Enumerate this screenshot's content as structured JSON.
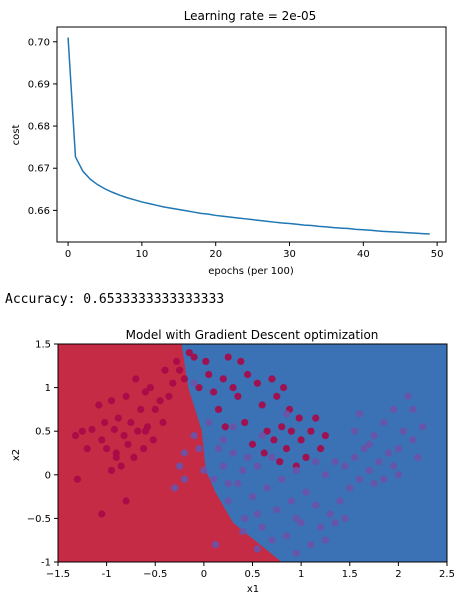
{
  "accuracy_text": "Accuracy: 0.6533333333333333",
  "chart_data": [
    {
      "type": "line",
      "title": "Learning rate = 2e-05",
      "xlabel": "epochs (per 100)",
      "ylabel": "cost",
      "xlim": [
        -1.5,
        51.2
      ],
      "ylim": [
        0.6525,
        0.7035
      ],
      "xticks": [
        0,
        10,
        20,
        30,
        40,
        50
      ],
      "yticks": [
        0.66,
        0.67,
        0.68,
        0.69,
        0.7
      ],
      "ytick_labels": [
        "0.66",
        "0.67",
        "0.68",
        "0.69",
        "0.70"
      ],
      "grid": false,
      "series": [
        {
          "color": "#1f77b4",
          "x": [
            0,
            1,
            2,
            3,
            4,
            5,
            6,
            7,
            8,
            9,
            10,
            11,
            12,
            13,
            14,
            15,
            16,
            17,
            18,
            19,
            20,
            21,
            22,
            23,
            24,
            25,
            26,
            27,
            28,
            29,
            30,
            31,
            32,
            33,
            34,
            35,
            36,
            37,
            38,
            39,
            40,
            41,
            42,
            43,
            44,
            45,
            46,
            47,
            48,
            49
          ],
          "y": [
            0.701,
            0.6727,
            0.6693,
            0.6674,
            0.6661,
            0.6651,
            0.6643,
            0.6636,
            0.663,
            0.6625,
            0.662,
            0.6616,
            0.6612,
            0.6608,
            0.6605,
            0.6602,
            0.6599,
            0.6596,
            0.6593,
            0.6591,
            0.6588,
            0.6586,
            0.6584,
            0.6582,
            0.658,
            0.6578,
            0.6576,
            0.6574,
            0.6572,
            0.657,
            0.6569,
            0.6567,
            0.6565,
            0.6564,
            0.6562,
            0.6561,
            0.6559,
            0.6558,
            0.6557,
            0.6555,
            0.6554,
            0.6553,
            0.6551,
            0.655,
            0.6549,
            0.6548,
            0.6547,
            0.6546,
            0.6545,
            0.6544
          ]
        }
      ]
    },
    {
      "type": "scatter",
      "title": "Model with Gradient Descent optimization",
      "xlabel": "x1",
      "ylabel": "x2",
      "xlim": [
        -1.5,
        2.5
      ],
      "ylim": [
        -1.0,
        1.5
      ],
      "xticks": [
        -1.5,
        -1.0,
        -0.5,
        0.0,
        0.5,
        1.0,
        1.5,
        2.0,
        2.5
      ],
      "yticks": [
        -1.0,
        -0.5,
        0.0,
        0.5,
        1.0,
        1.5
      ],
      "grid": false,
      "regions": {
        "class0_color": "#c62b45",
        "class1_color": "#3b72b5",
        "boundary": [
          [
            0.8,
            -1.0
          ],
          [
            0.3,
            -0.55
          ],
          [
            0.12,
            -0.2
          ],
          [
            0.02,
            0.05
          ],
          [
            -0.02,
            0.5
          ],
          [
            -0.16,
            1.0
          ],
          [
            -0.23,
            1.5
          ]
        ]
      },
      "series": [
        {
          "class": 0,
          "color": "#a80a49",
          "points": [
            [
              -1.32,
              0.45
            ],
            [
              -1.25,
              0.5
            ],
            [
              -1.3,
              -0.05
            ],
            [
              -1.15,
              0.52
            ],
            [
              -1.08,
              0.8
            ],
            [
              -1.05,
              0.4
            ],
            [
              -1.02,
              0.6
            ],
            [
              -1.0,
              0.3
            ],
            [
              -0.95,
              0.85
            ],
            [
              -0.92,
              0.52
            ],
            [
              -0.9,
              0.25
            ],
            [
              -0.88,
              0.65
            ],
            [
              -0.85,
              0.1
            ],
            [
              -0.82,
              0.45
            ],
            [
              -0.8,
              0.9
            ],
            [
              -0.78,
              0.35
            ],
            [
              -0.75,
              0.6
            ],
            [
              -0.72,
              0.2
            ],
            [
              -0.7,
              1.1
            ],
            [
              -0.68,
              0.5
            ],
            [
              -0.65,
              0.75
            ],
            [
              -0.62,
              0.3
            ],
            [
              -0.6,
              0.95
            ],
            [
              -0.58,
              0.55
            ],
            [
              -0.55,
              1.0
            ],
            [
              -0.52,
              0.4
            ],
            [
              -0.5,
              0.75
            ],
            [
              -0.45,
              0.85
            ],
            [
              -0.42,
              0.6
            ],
            [
              -0.4,
              1.2
            ],
            [
              -0.36,
              0.9
            ],
            [
              -0.32,
              1.05
            ],
            [
              -0.28,
              1.3
            ],
            [
              -0.25,
              1.2
            ],
            [
              -0.2,
              1.1
            ],
            [
              -0.15,
              1.4
            ],
            [
              -0.1,
              1.35
            ],
            [
              -0.05,
              1.0
            ],
            [
              0.02,
              1.3
            ],
            [
              0.05,
              1.15
            ],
            [
              0.1,
              0.95
            ],
            [
              0.15,
              0.75
            ],
            [
              0.2,
              1.1
            ],
            [
              0.22,
              0.55
            ],
            [
              0.25,
              1.35
            ],
            [
              0.3,
              1.0
            ],
            [
              0.35,
              0.9
            ],
            [
              0.38,
              1.3
            ],
            [
              0.42,
              0.6
            ],
            [
              0.45,
              1.15
            ],
            [
              0.5,
              0.35
            ],
            [
              0.55,
              1.05
            ],
            [
              0.6,
              0.8
            ],
            [
              0.62,
              0.25
            ],
            [
              0.65,
              0.5
            ],
            [
              0.7,
              1.1
            ],
            [
              0.72,
              0.4
            ],
            [
              0.75,
              0.9
            ],
            [
              0.78,
              0.15
            ],
            [
              0.8,
              0.55
            ],
            [
              0.82,
              1.0
            ],
            [
              0.85,
              0.3
            ],
            [
              0.88,
              0.75
            ],
            [
              0.9,
              0.5
            ],
            [
              0.95,
              0.1
            ],
            [
              0.98,
              0.65
            ],
            [
              1.0,
              0.4
            ],
            [
              1.05,
              0.2
            ],
            [
              1.1,
              0.5
            ],
            [
              1.15,
              0.65
            ],
            [
              1.2,
              0.3
            ],
            [
              1.25,
              0.45
            ],
            [
              -0.8,
              -0.3
            ],
            [
              -1.05,
              -0.45
            ],
            [
              -0.95,
              0.05
            ],
            [
              -0.6,
              0.5
            ],
            [
              -0.9,
              0.2
            ],
            [
              -1.2,
              0.3
            ]
          ]
        },
        {
          "class": 1,
          "color": "#6a52a8",
          "points": [
            [
              0.0,
              0.05
            ],
            [
              -0.2,
              0.25
            ],
            [
              -0.25,
              0.1
            ],
            [
              -0.3,
              -0.15
            ],
            [
              -0.2,
              -0.05
            ],
            [
              -0.1,
              0.45
            ],
            [
              -0.05,
              0.3
            ],
            [
              0.05,
              0.6
            ],
            [
              0.1,
              -0.05
            ],
            [
              0.15,
              0.3
            ],
            [
              0.2,
              0.1
            ],
            [
              0.25,
              -0.3
            ],
            [
              0.3,
              0.25
            ],
            [
              0.35,
              -0.1
            ],
            [
              0.4,
              0.05
            ],
            [
              0.42,
              -0.5
            ],
            [
              0.45,
              0.2
            ],
            [
              0.5,
              -0.25
            ],
            [
              0.55,
              0.1
            ],
            [
              0.6,
              -0.6
            ],
            [
              0.65,
              -0.15
            ],
            [
              0.7,
              0.2
            ],
            [
              0.75,
              -0.4
            ],
            [
              0.8,
              -0.05
            ],
            [
              0.85,
              -0.7
            ],
            [
              0.9,
              -0.3
            ],
            [
              0.95,
              0.05
            ],
            [
              1.0,
              -0.55
            ],
            [
              1.05,
              -0.2
            ],
            [
              1.1,
              -0.8
            ],
            [
              1.15,
              -0.35
            ],
            [
              1.2,
              -0.6
            ],
            [
              1.25,
              0.0
            ],
            [
              1.3,
              -0.45
            ],
            [
              1.35,
              0.15
            ],
            [
              1.4,
              -0.3
            ],
            [
              1.45,
              0.1
            ],
            [
              1.5,
              -0.15
            ],
            [
              1.55,
              0.2
            ],
            [
              1.6,
              -0.05
            ],
            [
              1.65,
              0.3
            ],
            [
              1.7,
              0.05
            ],
            [
              1.75,
              0.45
            ],
            [
              1.8,
              0.15
            ],
            [
              1.85,
              0.6
            ],
            [
              1.9,
              0.25
            ],
            [
              1.95,
              0.75
            ],
            [
              2.0,
              0.3
            ],
            [
              2.05,
              0.5
            ],
            [
              2.1,
              0.9
            ],
            [
              2.15,
              0.4
            ],
            [
              2.2,
              0.2
            ],
            [
              2.25,
              0.55
            ],
            [
              1.55,
              0.5
            ],
            [
              1.35,
              -0.55
            ],
            [
              0.12,
              -0.8
            ],
            [
              0.55,
              -0.85
            ],
            [
              0.95,
              -0.9
            ],
            [
              0.7,
              -0.75
            ],
            [
              1.15,
              0.15
            ],
            [
              1.75,
              -0.1
            ],
            [
              2.0,
              0.0
            ],
            [
              1.6,
              0.7
            ],
            [
              1.95,
              0.1
            ],
            [
              0.3,
              0.55
            ],
            [
              0.2,
              0.4
            ],
            [
              0.85,
              0.7
            ],
            [
              0.6,
              0.45
            ],
            [
              0.4,
              -0.65
            ],
            [
              1.45,
              -0.5
            ],
            [
              1.85,
              -0.05
            ],
            [
              1.25,
              -0.75
            ],
            [
              0.95,
              -0.5
            ],
            [
              0.55,
              -0.45
            ],
            [
              2.15,
              0.75
            ],
            [
              1.7,
              0.35
            ],
            [
              0.25,
              -0.1
            ],
            [
              -0.1,
              1.05
            ]
          ]
        }
      ]
    }
  ],
  "colors": {
    "axis": "#000000",
    "line": "#1f77b4"
  }
}
